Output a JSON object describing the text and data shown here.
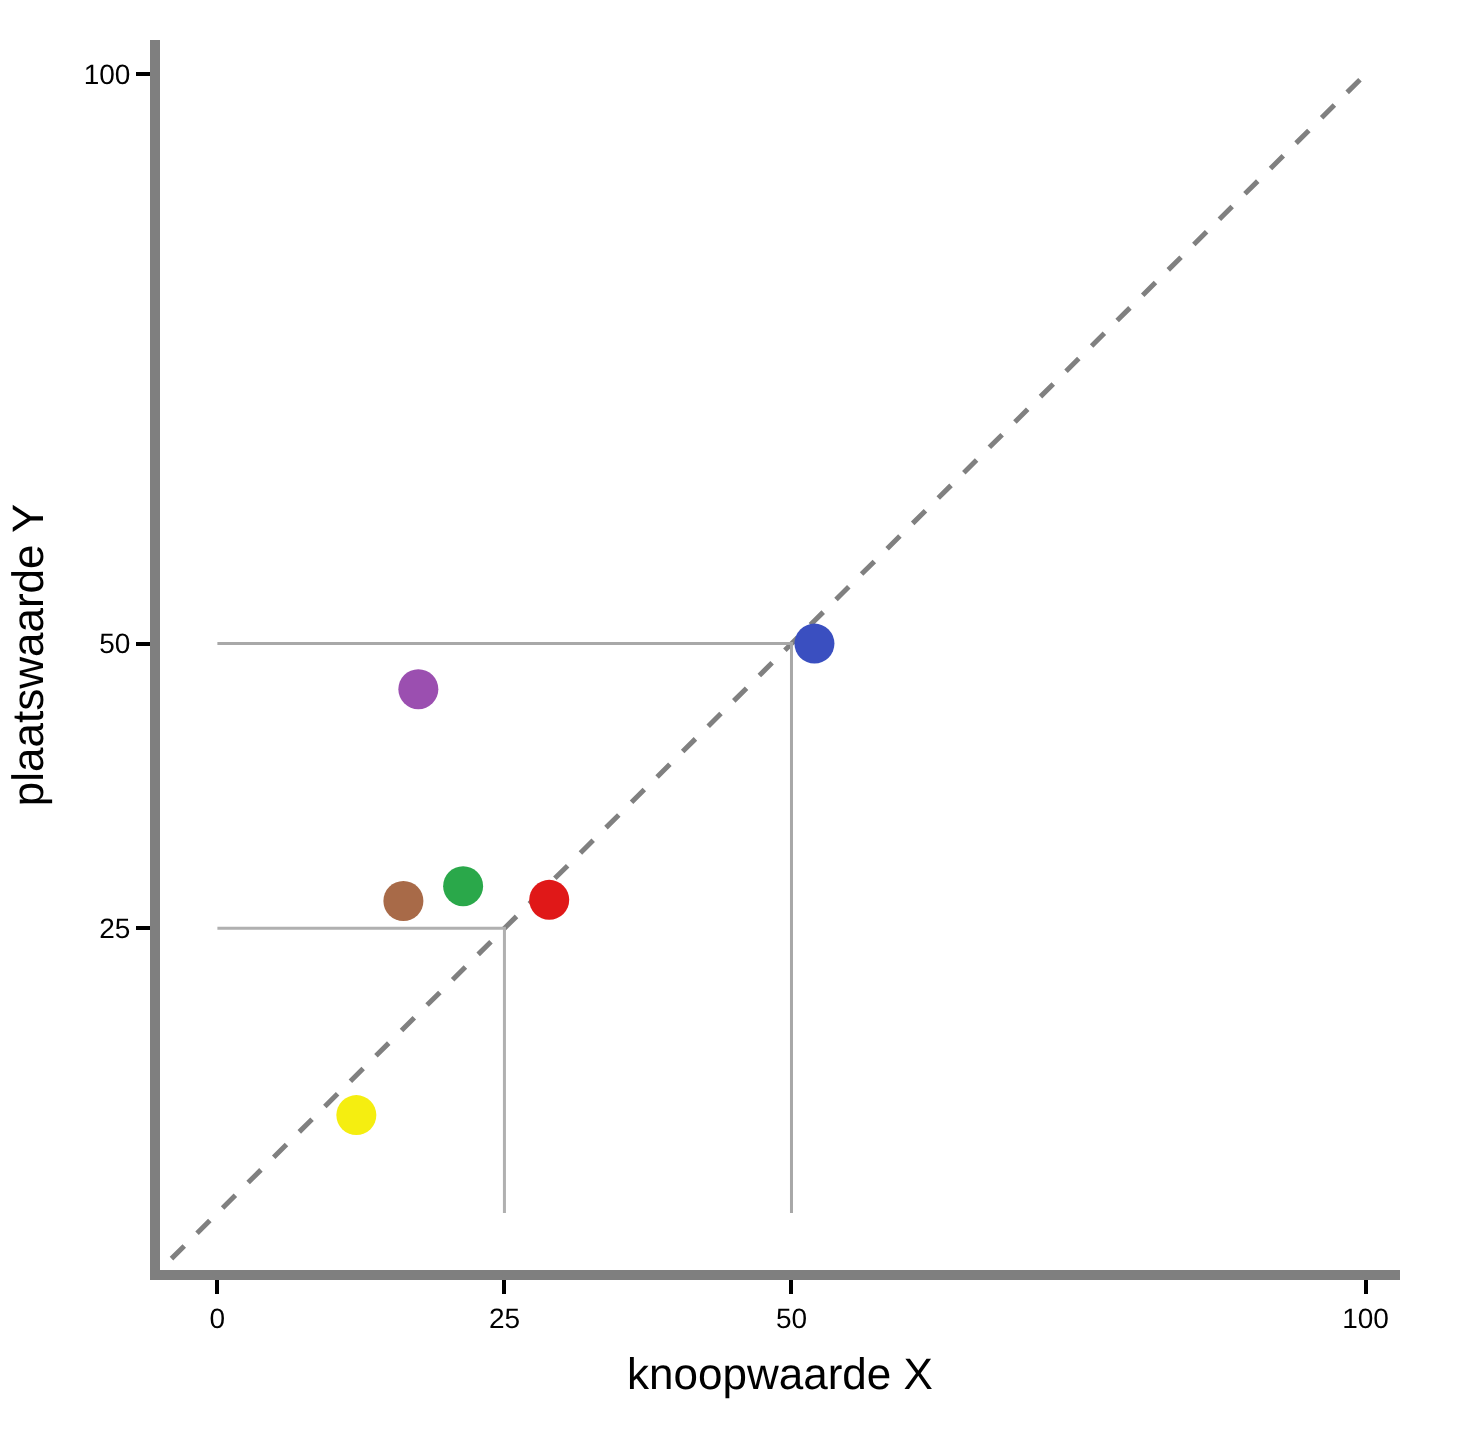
{
  "chart_data": {
    "type": "scatter",
    "xlabel": "knoopwaarde X",
    "ylabel": "plaatswaarde Y",
    "xlim": [
      -5,
      103
    ],
    "ylim": [
      -5,
      103
    ],
    "xticks": [
      0,
      25,
      50,
      100
    ],
    "yticks": [
      25,
      50,
      100
    ],
    "legend": false,
    "series": [
      {
        "type": "line",
        "color": "#808080",
        "line_style": "dashed",
        "marker": "none",
        "x": [
          -4,
          100
        ],
        "values": [
          -4,
          100
        ]
      },
      {
        "type": "line",
        "color": "#b0b0b0",
        "line_style": "solid",
        "marker": "none",
        "x": [
          0,
          25,
          25
        ],
        "values": [
          25,
          25,
          0
        ]
      },
      {
        "type": "line",
        "color": "#a8a8a8",
        "line_style": "solid",
        "marker": "none",
        "x": [
          0,
          50,
          50
        ],
        "values": [
          50,
          50,
          0
        ]
      },
      {
        "color": "#3a4fc0",
        "marker": "circle",
        "x": [
          52
        ],
        "values": [
          50
        ]
      },
      {
        "color": "#9b4fb0",
        "marker": "circle",
        "x": [
          17.5
        ],
        "values": [
          46
        ]
      },
      {
        "color": "#2aa84a",
        "marker": "circle",
        "x": [
          21.4
        ],
        "values": [
          28.7
        ]
      },
      {
        "color": "#a86a48",
        "marker": "circle",
        "x": [
          16.2
        ],
        "values": [
          27.4
        ]
      },
      {
        "color": "#e01818",
        "marker": "circle",
        "x": [
          28.9
        ],
        "values": [
          27.5
        ]
      },
      {
        "color": "#f5ee10",
        "marker": "circle",
        "x": [
          12.1
        ],
        "values": [
          8.6
        ]
      }
    ]
  }
}
